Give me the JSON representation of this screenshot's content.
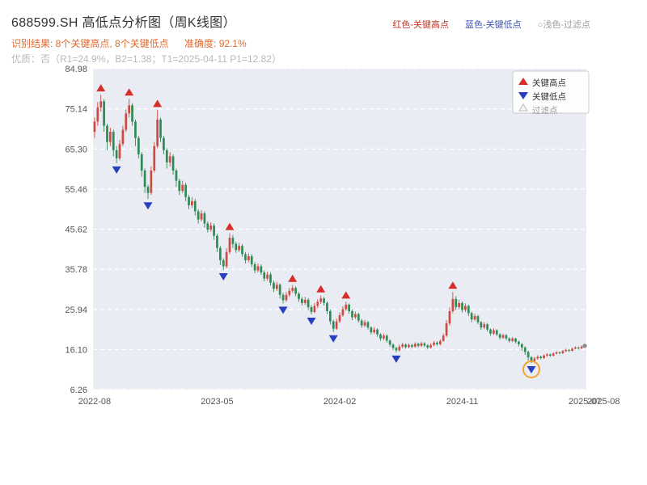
{
  "header": {
    "title": "688599.SH 高低点分析图（周K线图）",
    "legend_inline": [
      {
        "label": "红色-关键高点",
        "color": "#c0392b"
      },
      {
        "label": "蓝色-关键低点",
        "color": "#3b55b0"
      },
      {
        "label": "○浅色-过滤点",
        "color": "#9aa0a6"
      }
    ],
    "result_line": "识别结果: 8个关键高点, 8个关键低点",
    "accuracy_line": "准确度: 92.1%",
    "quality_line": "优质：否（R1=24.9%，B2=1.38；T1=2025-04-11 P1=12.82）"
  },
  "chart_data": {
    "type": "candlestick",
    "title": "688599.SH 高低点分析图（周K线图）",
    "symbol": "688599.SH",
    "interval": "weekly",
    "ylim": [
      6.26,
      84.98
    ],
    "y_ticks": [
      6.26,
      16.1,
      25.94,
      35.78,
      45.62,
      55.46,
      65.3,
      75.14,
      84.98
    ],
    "y_tick_labels": [
      "6.26",
      "16.10",
      "25.94",
      "35.78",
      "45.62",
      "55.46",
      "65.30",
      "75.14",
      "84.98"
    ],
    "x_ticks": [
      {
        "label": "2022-08",
        "week": 0
      },
      {
        "label": "2023-05",
        "week": 39
      },
      {
        "label": "2024-02",
        "week": 78
      },
      {
        "label": "2024-11",
        "week": 117
      },
      {
        "label": "2025-07",
        "week": 156
      },
      {
        "label": "2025-08",
        "week": 162
      }
    ],
    "legend_box": [
      {
        "marker": "up-triangle",
        "label": "关键高点",
        "color": "#d62f2a"
      },
      {
        "marker": "down-triangle",
        "label": "关键低点",
        "color": "#2840c0"
      },
      {
        "marker": "hollow-triangle",
        "label": "过滤点",
        "color": "#bbbbbb"
      }
    ],
    "colors": {
      "up": "#cf4b42",
      "down": "#2e8b57",
      "plot_bg": "#eaecf4",
      "grid": "#ffffff",
      "high_marker": "#d62f2a",
      "low_marker": "#2840c0",
      "highlight_circle": "#f5a42a",
      "axis_text": "#555555"
    },
    "high_point_indices": [
      2,
      11,
      20,
      43,
      63,
      72,
      80,
      114
    ],
    "low_point_indices": [
      7,
      17,
      41,
      60,
      69,
      76,
      96,
      139
    ],
    "filtered_circle_index": 139,
    "last_dot_index": 156,
    "candles": [
      [
        69.5,
        73.0,
        68.0,
        72.0
      ],
      [
        72.0,
        76.8,
        71.0,
        75.5
      ],
      [
        75.5,
        78.6,
        74.5,
        77.0
      ],
      [
        77.0,
        77.5,
        69.5,
        71.0
      ],
      [
        71.0,
        71.5,
        65.0,
        67.0
      ],
      [
        67.0,
        70.5,
        66.0,
        69.5
      ],
      [
        69.5,
        70.0,
        63.5,
        65.0
      ],
      [
        65.0,
        66.0,
        61.8,
        63.0
      ],
      [
        63.0,
        67.5,
        62.5,
        66.5
      ],
      [
        66.5,
        71.0,
        66.0,
        70.0
      ],
      [
        70.0,
        75.0,
        69.5,
        74.0
      ],
      [
        74.0,
        77.6,
        73.0,
        76.0
      ],
      [
        76.0,
        76.5,
        71.0,
        72.0
      ],
      [
        72.0,
        72.5,
        66.0,
        68.0
      ],
      [
        68.0,
        68.5,
        63.0,
        64.0
      ],
      [
        64.0,
        64.5,
        58.5,
        60.0
      ],
      [
        60.0,
        60.5,
        54.5,
        56.0
      ],
      [
        56.0,
        56.5,
        53.0,
        54.5
      ],
      [
        54.5,
        61.0,
        54.0,
        60.0
      ],
      [
        60.0,
        67.0,
        59.5,
        66.0
      ],
      [
        66.0,
        74.8,
        65.5,
        72.5
      ],
      [
        72.5,
        73.0,
        67.0,
        68.0
      ],
      [
        68.0,
        68.5,
        64.0,
        65.0
      ],
      [
        65.0,
        65.5,
        60.5,
        62.0
      ],
      [
        62.0,
        64.5,
        61.0,
        63.5
      ],
      [
        63.5,
        64.0,
        59.0,
        60.0
      ],
      [
        60.0,
        60.5,
        56.0,
        57.5
      ],
      [
        57.5,
        58.0,
        54.0,
        55.0
      ],
      [
        55.0,
        57.5,
        54.5,
        56.5
      ],
      [
        56.5,
        57.0,
        52.5,
        53.5
      ],
      [
        53.5,
        54.0,
        50.5,
        51.5
      ],
      [
        51.5,
        53.5,
        50.8,
        52.5
      ],
      [
        52.5,
        53.0,
        49.0,
        50.0
      ],
      [
        50.0,
        50.5,
        47.0,
        48.0
      ],
      [
        48.0,
        50.3,
        47.5,
        49.5
      ],
      [
        49.5,
        50.0,
        46.0,
        47.0
      ],
      [
        47.0,
        47.5,
        44.8,
        45.5
      ],
      [
        45.5,
        47.3,
        45.0,
        46.5
      ],
      [
        46.5,
        47.0,
        43.0,
        44.0
      ],
      [
        44.0,
        44.5,
        40.0,
        41.0
      ],
      [
        41.0,
        41.5,
        36.8,
        38.0
      ],
      [
        38.0,
        38.5,
        35.6,
        36.5
      ],
      [
        36.5,
        41.0,
        36.0,
        40.0
      ],
      [
        40.0,
        44.6,
        39.5,
        43.5
      ],
      [
        43.5,
        44.2,
        41.0,
        42.0
      ],
      [
        42.0,
        42.5,
        39.8,
        40.5
      ],
      [
        40.5,
        42.3,
        40.0,
        41.5
      ],
      [
        41.5,
        42.0,
        38.8,
        39.5
      ],
      [
        39.5,
        40.0,
        37.2,
        38.0
      ],
      [
        38.0,
        39.8,
        37.5,
        39.0
      ],
      [
        39.0,
        39.5,
        36.3,
        37.0
      ],
      [
        37.0,
        37.5,
        34.8,
        35.5
      ],
      [
        35.5,
        37.2,
        35.0,
        36.5
      ],
      [
        36.5,
        37.0,
        34.4,
        35.0
      ],
      [
        35.0,
        35.5,
        32.8,
        33.5
      ],
      [
        33.5,
        35.2,
        33.0,
        34.5
      ],
      [
        34.5,
        35.0,
        31.8,
        32.5
      ],
      [
        32.5,
        33.0,
        30.2,
        31.0
      ],
      [
        31.0,
        32.7,
        30.5,
        32.0
      ],
      [
        32.0,
        32.3,
        28.6,
        29.5
      ],
      [
        29.5,
        30.0,
        27.4,
        28.2
      ],
      [
        28.2,
        30.2,
        27.8,
        29.5
      ],
      [
        29.5,
        31.2,
        29.0,
        30.5
      ],
      [
        30.5,
        31.9,
        30.0,
        31.2
      ],
      [
        31.2,
        31.6,
        29.2,
        29.8
      ],
      [
        29.8,
        30.2,
        27.8,
        28.5
      ],
      [
        28.5,
        29.0,
        26.9,
        27.5
      ],
      [
        27.5,
        29.0,
        27.0,
        28.3
      ],
      [
        28.3,
        28.7,
        25.8,
        26.5
      ],
      [
        26.5,
        27.0,
        24.7,
        25.3
      ],
      [
        25.3,
        27.5,
        25.0,
        26.8
      ],
      [
        26.8,
        28.4,
        26.3,
        27.8
      ],
      [
        27.8,
        29.3,
        27.3,
        28.6
      ],
      [
        28.6,
        29.0,
        26.9,
        27.5
      ],
      [
        27.5,
        27.9,
        24.8,
        25.5
      ],
      [
        25.5,
        25.9,
        22.2,
        23.0
      ],
      [
        23.0,
        23.4,
        20.4,
        21.2
      ],
      [
        21.2,
        23.7,
        20.9,
        23.0
      ],
      [
        23.0,
        25.2,
        22.6,
        24.5
      ],
      [
        24.5,
        26.7,
        24.1,
        26.0
      ],
      [
        26.0,
        27.8,
        25.6,
        27.1
      ],
      [
        27.1,
        27.4,
        24.9,
        25.5
      ],
      [
        25.5,
        25.9,
        23.3,
        24.0
      ],
      [
        24.0,
        25.4,
        23.6,
        24.8
      ],
      [
        24.8,
        25.1,
        22.7,
        23.2
      ],
      [
        23.2,
        23.6,
        21.4,
        22.0
      ],
      [
        22.0,
        23.4,
        21.6,
        22.8
      ],
      [
        22.8,
        23.1,
        21.0,
        21.5
      ],
      [
        21.5,
        21.8,
        19.8,
        20.3
      ],
      [
        20.3,
        21.6,
        19.9,
        21.0
      ],
      [
        21.0,
        21.3,
        19.2,
        19.8
      ],
      [
        19.8,
        20.1,
        18.2,
        18.8
      ],
      [
        18.8,
        20.0,
        18.4,
        19.5
      ],
      [
        19.5,
        19.8,
        17.8,
        18.3
      ],
      [
        18.3,
        18.6,
        16.8,
        17.3
      ],
      [
        17.3,
        17.6,
        15.9,
        16.5
      ],
      [
        16.5,
        16.8,
        15.4,
        15.9
      ],
      [
        15.9,
        17.3,
        15.6,
        16.8
      ],
      [
        16.8,
        17.8,
        16.4,
        17.3
      ],
      [
        17.3,
        17.6,
        16.3,
        16.7
      ],
      [
        16.7,
        17.6,
        16.4,
        17.2
      ],
      [
        17.2,
        17.5,
        16.4,
        16.8
      ],
      [
        16.8,
        17.9,
        16.5,
        17.5
      ],
      [
        17.5,
        17.8,
        16.6,
        17.0
      ],
      [
        17.0,
        18.0,
        16.7,
        17.6
      ],
      [
        17.6,
        17.9,
        16.7,
        17.1
      ],
      [
        17.1,
        17.4,
        16.2,
        16.6
      ],
      [
        16.6,
        17.6,
        16.3,
        17.2
      ],
      [
        17.2,
        18.2,
        16.9,
        17.8
      ],
      [
        17.8,
        18.1,
        17.0,
        17.4
      ],
      [
        17.4,
        18.6,
        17.1,
        18.2
      ],
      [
        18.2,
        20.0,
        18.0,
        19.5
      ],
      [
        19.5,
        23.3,
        19.2,
        22.5
      ],
      [
        22.5,
        26.4,
        22.0,
        25.5
      ],
      [
        25.5,
        30.2,
        25.0,
        28.5
      ],
      [
        28.5,
        29.2,
        25.8,
        26.5
      ],
      [
        26.5,
        28.3,
        25.9,
        27.5
      ],
      [
        27.5,
        27.9,
        25.2,
        25.8
      ],
      [
        25.8,
        27.4,
        25.3,
        26.8
      ],
      [
        26.8,
        27.1,
        24.3,
        25.0
      ],
      [
        25.0,
        25.4,
        22.8,
        23.5
      ],
      [
        23.5,
        24.9,
        23.1,
        24.3
      ],
      [
        24.3,
        24.6,
        22.3,
        22.8
      ],
      [
        22.8,
        23.1,
        20.9,
        21.5
      ],
      [
        21.5,
        22.8,
        21.1,
        22.3
      ],
      [
        22.3,
        22.6,
        20.5,
        21.0
      ],
      [
        21.0,
        21.3,
        19.5,
        20.0
      ],
      [
        20.0,
        21.3,
        19.7,
        20.8
      ],
      [
        20.8,
        21.1,
        19.4,
        19.8
      ],
      [
        19.8,
        20.1,
        18.5,
        19.0
      ],
      [
        19.0,
        20.0,
        18.7,
        19.6
      ],
      [
        19.6,
        19.9,
        18.4,
        18.8
      ],
      [
        18.8,
        19.1,
        17.8,
        18.2
      ],
      [
        18.2,
        19.2,
        17.9,
        18.8
      ],
      [
        18.8,
        19.0,
        17.6,
        18.0
      ],
      [
        18.0,
        18.3,
        16.9,
        17.4
      ],
      [
        17.4,
        17.7,
        15.8,
        16.6
      ],
      [
        16.6,
        16.9,
        14.8,
        15.5
      ],
      [
        15.5,
        15.8,
        13.4,
        14.2
      ],
      [
        14.2,
        14.5,
        12.8,
        13.3
      ],
      [
        13.3,
        14.3,
        13.0,
        13.9
      ],
      [
        13.9,
        14.7,
        13.6,
        14.3
      ],
      [
        14.3,
        14.6,
        13.7,
        14.0
      ],
      [
        14.0,
        14.9,
        13.8,
        14.6
      ],
      [
        14.6,
        15.2,
        14.3,
        14.9
      ],
      [
        14.9,
        15.1,
        14.3,
        14.6
      ],
      [
        14.6,
        15.4,
        14.4,
        15.1
      ],
      [
        15.1,
        15.7,
        14.9,
        15.4
      ],
      [
        15.4,
        15.6,
        14.9,
        15.2
      ],
      [
        15.2,
        16.0,
        15.0,
        15.7
      ],
      [
        15.7,
        16.3,
        15.5,
        16.0
      ],
      [
        16.0,
        16.2,
        15.5,
        15.8
      ],
      [
        15.8,
        16.6,
        15.6,
        16.3
      ],
      [
        16.3,
        16.9,
        16.1,
        16.6
      ],
      [
        16.6,
        16.8,
        16.1,
        16.4
      ],
      [
        16.4,
        17.1,
        16.2,
        16.8
      ],
      [
        16.8,
        17.3,
        16.6,
        17.0
      ]
    ]
  }
}
